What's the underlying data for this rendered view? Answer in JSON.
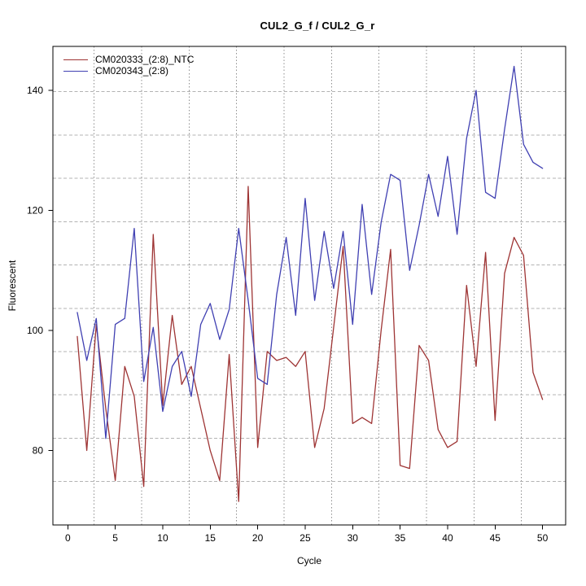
{
  "chart_data": {
    "type": "line",
    "title": "CUL2_G_f / CUL2_G_r",
    "xlabel": "Cycle",
    "ylabel": "Fluorescent",
    "x_ticks": [
      0,
      5,
      10,
      15,
      20,
      25,
      30,
      35,
      40,
      45,
      50
    ],
    "y_ticks": [
      80,
      100,
      120,
      140
    ],
    "xlim": [
      -1.567,
      52.433
    ],
    "ylim": [
      67.59,
      147.32
    ],
    "grid": {
      "on": true,
      "vertical_style": "dotted",
      "horizontal_style": "dashed",
      "color": "#9a9a9a"
    },
    "legend_position": "top-left",
    "x": [
      1,
      2,
      3,
      4,
      5,
      6,
      7,
      8,
      9,
      10,
      11,
      12,
      13,
      14,
      15,
      16,
      17,
      18,
      19,
      20,
      21,
      22,
      23,
      24,
      25,
      26,
      27,
      28,
      29,
      30,
      31,
      32,
      33,
      34,
      35,
      36,
      37,
      38,
      39,
      40,
      41,
      42,
      43,
      44,
      45,
      46,
      47,
      48,
      49,
      50
    ],
    "series": [
      {
        "name": "CM020333_(2:8)_NTC",
        "color": "#9e3434",
        "values": [
          99,
          80,
          101,
          87,
          75,
          94,
          89,
          74,
          116,
          87.5,
          102.5,
          91,
          94,
          87,
          80,
          75,
          96,
          71.5,
          124,
          80.5,
          96.5,
          95,
          95.5,
          94,
          96.5,
          80.5,
          87,
          100.5,
          114,
          84.5,
          85.5,
          84.5,
          100,
          113.5,
          77.5,
          77,
          97.5,
          95,
          83.5,
          80.5,
          81.5,
          107.5,
          94,
          113,
          85,
          109.5,
          115.5,
          112.5,
          93,
          88.5
        ]
      },
      {
        "name": "CM020343_(2:8)",
        "color": "#4040b2",
        "values": [
          103,
          95,
          102,
          82,
          101,
          102,
          117,
          91.5,
          100.5,
          86.5,
          94,
          96.5,
          89,
          101,
          104.5,
          98.5,
          103.5,
          117,
          105,
          92,
          91,
          106,
          115.5,
          102.5,
          122,
          105,
          116.5,
          107,
          116.5,
          101,
          121,
          106,
          118,
          126,
          125,
          110,
          117.5,
          126,
          119,
          129,
          116,
          132,
          140,
          123,
          122,
          133.5,
          144,
          131,
          128,
          127
        ]
      }
    ]
  }
}
